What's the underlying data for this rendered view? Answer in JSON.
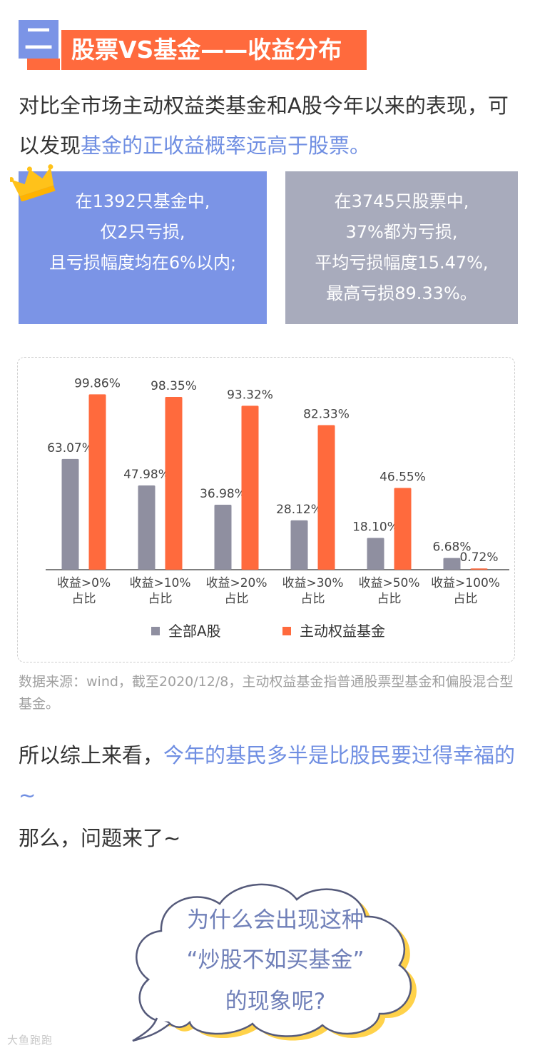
{
  "header": {
    "section_number": "二",
    "title": "股票VS基金——收益分布"
  },
  "intro": {
    "text_plain": "对比全市场主动权益类基金和A股今年以来的表现，可以发现",
    "text_highlight": "基金的正收益概率远高于股票。"
  },
  "stat_boxes": {
    "fund_lines": [
      "在1392只基金中,",
      "仅2只亏损,",
      "且亏损幅度均在6%以内;"
    ],
    "stock_lines": [
      "在3745只股票中,",
      "37%都为亏损,",
      "平均亏损幅度15.47%,",
      "最高亏损89.33%。"
    ]
  },
  "colors": {
    "accent_blue": "#7b94e6",
    "accent_orange": "#ff6a3d",
    "gray_bar": "#8f8fa0",
    "stock_box": "#a8abbc"
  },
  "chart_data": {
    "type": "bar",
    "categories": [
      "收益>0%\n占比",
      "收益>10%\n占比",
      "收益>20%\n占比",
      "收益>30%\n占比",
      "收益>50%\n占比",
      "收益>100%\n占比"
    ],
    "series": [
      {
        "name": "全部A股",
        "values": [
          63.07,
          47.98,
          36.98,
          28.12,
          18.1,
          6.68
        ],
        "labels": [
          "63.07%",
          "47.98%",
          "36.98%",
          "28.12%",
          "18.10%",
          "6.68%"
        ],
        "color": "#8f8fa0"
      },
      {
        "name": "主动权益基金",
        "values": [
          99.86,
          98.35,
          93.32,
          82.33,
          46.55,
          0.72
        ],
        "labels": [
          "99.86%",
          "98.35%",
          "93.32%",
          "82.33%",
          "46.55%",
          "0.72%"
        ],
        "color": "#ff6a3d"
      }
    ],
    "ylim": [
      0,
      100
    ],
    "legend_position": "bottom",
    "grid": false
  },
  "source_note": "数据来源：wind，截至2020/12/8，主动权益基金指普通股票型基金和偏股混合型基金。",
  "conclusion": {
    "text_plain": "所以综上来看，",
    "text_highlight": "今年的基民多半是比股民要过得幸福的~"
  },
  "question_intro": "那么，问题来了~",
  "bubble": {
    "lines": [
      "为什么会出现这种",
      "“炒股不如买基金”",
      "的现象呢?"
    ]
  },
  "watermark": "大鱼跑跑"
}
